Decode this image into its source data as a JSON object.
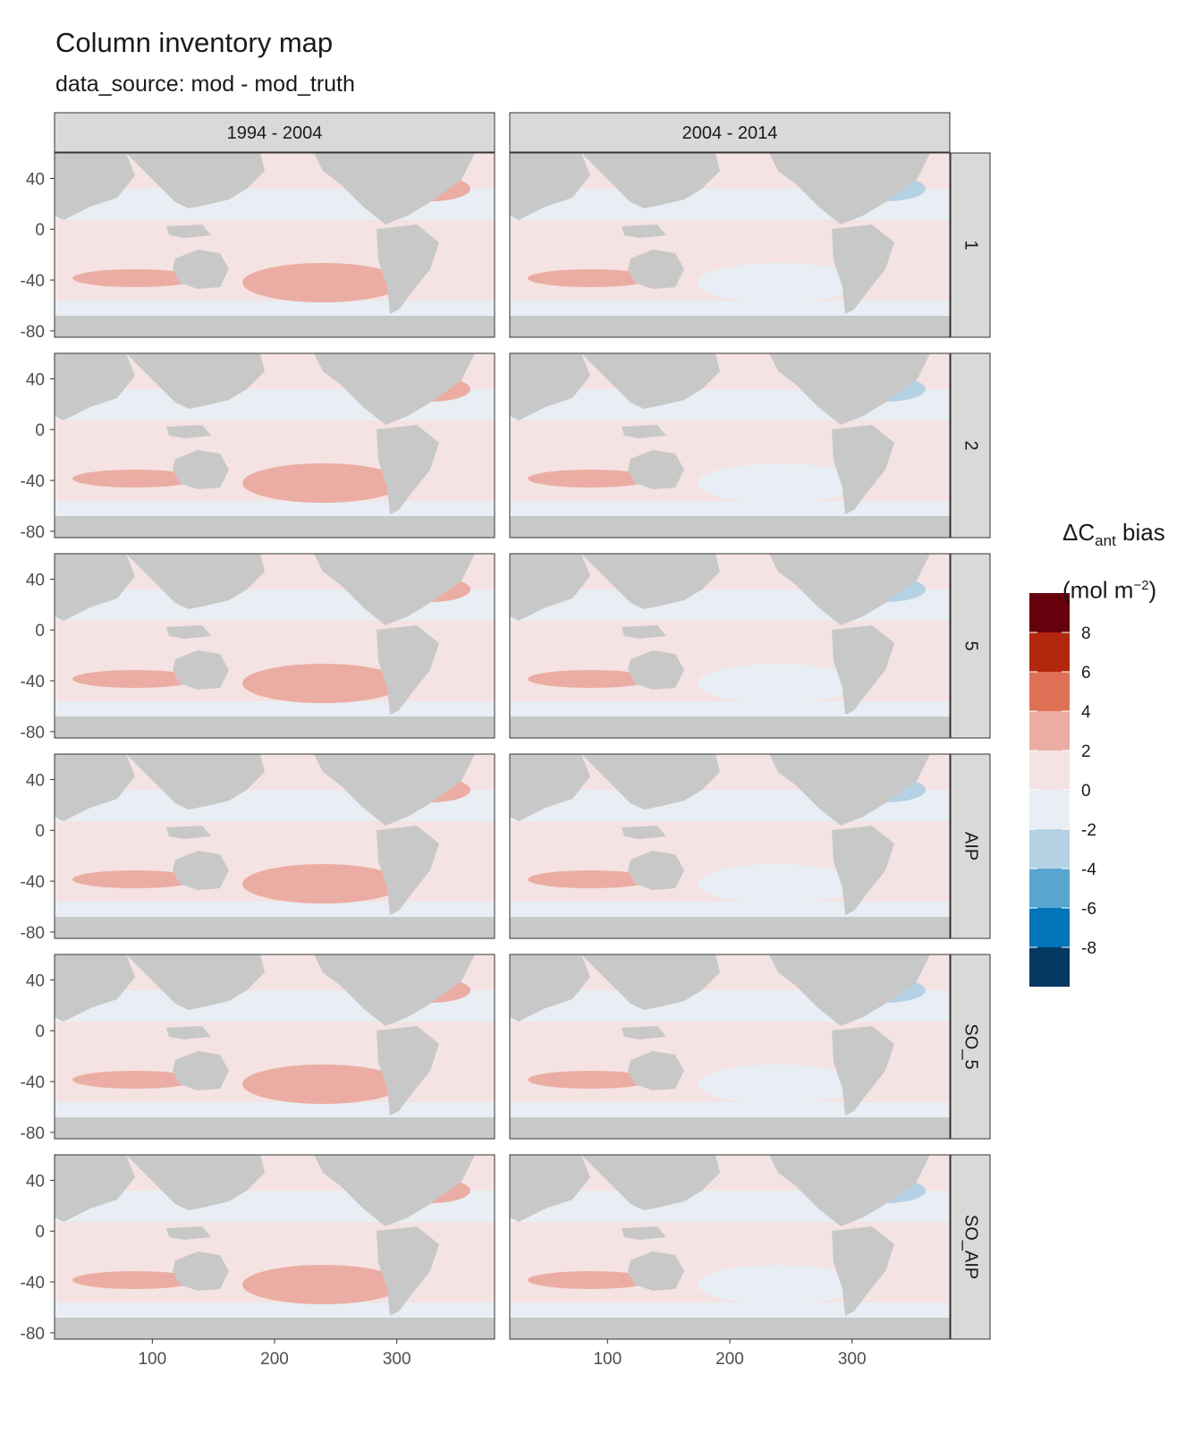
{
  "title": "Column inventory map",
  "subtitle": "data_source: mod - mod_truth",
  "columns": [
    "1994 - 2004",
    "2004 - 2014"
  ],
  "rows": [
    "1",
    "2",
    "5",
    "AIP",
    "SO_5",
    "SO_AIP"
  ],
  "y_axis_ticks": [
    "40",
    "0",
    "-40",
    "-80"
  ],
  "x_axis_ticks": [
    "100",
    "200",
    "300"
  ],
  "legend": {
    "title_main": "ΔC",
    "title_sub": "ant",
    "title_rest": " bias",
    "unit_open": "(mol m",
    "unit_sup": "−2",
    "unit_close": ")",
    "labels": [
      "8",
      "6",
      "4",
      "2",
      "0",
      "-2",
      "-4",
      "-6",
      "-8"
    ],
    "colors": [
      "#67000d",
      "#b2280f",
      "#dd7055",
      "#ebada3",
      "#f4e3e2",
      "#e8eef3",
      "#b5d1e4",
      "#56a6cf",
      "#0075b8",
      "#053862"
    ]
  },
  "colors": {
    "land": "#c8c8c8",
    "ocean_neutral_pos": "#f4e3e2",
    "ocean_neutral_neg": "#e8eef3"
  }
}
